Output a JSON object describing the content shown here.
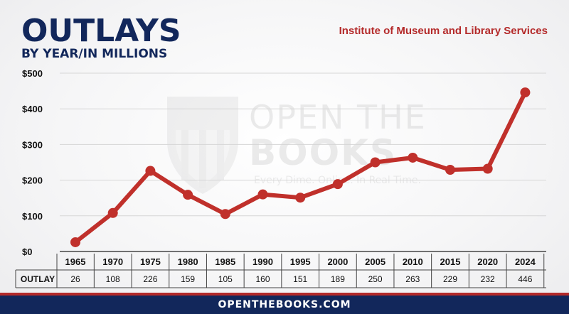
{
  "header": {
    "title": "OUTLAYS",
    "subtitle": "BY YEAR/IN MILLIONS",
    "agency": "Institute of Museum and Library Services"
  },
  "watermark": {
    "line1": "OPEN THE",
    "line2": "BOOKS",
    "tagline": "Every Dime. Online. In Real Time."
  },
  "footer": {
    "site": "OPENTHEBOOKS.COM"
  },
  "colors": {
    "navy": "#12275b",
    "red": "#b42a2a",
    "line": "#c0302b"
  },
  "chart_data": {
    "type": "line",
    "title": "OUTLAYS",
    "subtitle": "BY YEAR/IN MILLIONS",
    "categories": [
      "1965",
      "1970",
      "1975",
      "1980",
      "1985",
      "1990",
      "1995",
      "2000",
      "2005",
      "2010",
      "2015",
      "2020",
      "2024"
    ],
    "series": [
      {
        "name": "OUTLAY",
        "values": [
          26,
          108,
          226,
          159,
          105,
          160,
          151,
          189,
          250,
          263,
          229,
          232,
          446
        ]
      }
    ],
    "table_values": [
      "26",
      "108",
      "226",
      "159",
      "105",
      "160",
      "151",
      "189",
      "250",
      "263",
      "229",
      "232",
      "446"
    ],
    "row_label": "OUTLAY",
    "yticks": [
      "$0",
      "$100",
      "$200",
      "$300",
      "$400",
      "$500"
    ],
    "ytick_values": [
      0,
      100,
      200,
      300,
      400,
      500
    ],
    "ylim": [
      0,
      500
    ],
    "grid": true,
    "legend": "none"
  }
}
